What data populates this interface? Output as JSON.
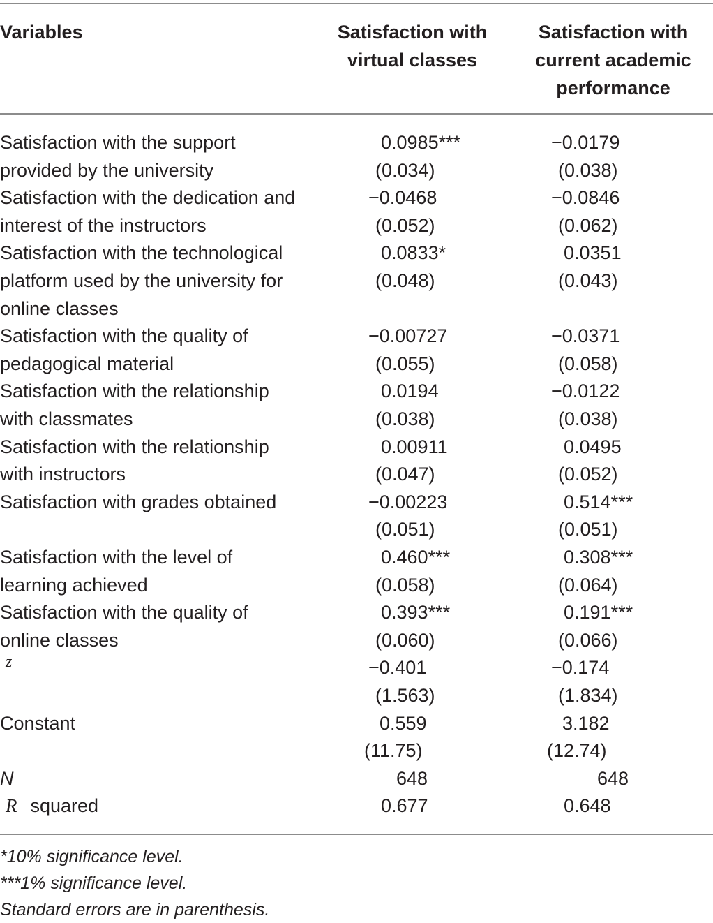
{
  "header": {
    "variables": "Variables",
    "col1": [
      "Satisfaction with",
      "virtual classes"
    ],
    "col2": [
      "Satisfaction with",
      "current academic",
      "performance"
    ]
  },
  "rows": [
    {
      "label": [
        "Satisfaction with the support",
        "provided by the university"
      ],
      "c1": [
        "0.0985***",
        "(0.034)"
      ],
      "c2": [
        "−0.0179",
        "(0.038)"
      ]
    },
    {
      "label": [
        "Satisfaction with the dedication and",
        "interest of the instructors"
      ],
      "c1": [
        "−0.0468",
        "(0.052)"
      ],
      "c2": [
        "−0.0846",
        "(0.062)"
      ]
    },
    {
      "label": [
        "Satisfaction with the technological",
        "platform used by the university for",
        "online classes"
      ],
      "c1": [
        "0.0833*",
        "(0.048)"
      ],
      "c2": [
        "0.0351",
        "(0.043)"
      ]
    },
    {
      "label": [
        "Satisfaction with the quality of",
        "pedagogical material"
      ],
      "c1": [
        "−0.00727",
        "(0.055)"
      ],
      "c2": [
        "−0.0371",
        "(0.058)"
      ]
    },
    {
      "label": [
        "Satisfaction with the relationship",
        "with classmates"
      ],
      "c1": [
        "0.0194",
        "(0.038)"
      ],
      "c2": [
        "−0.0122",
        "(0.038)"
      ]
    },
    {
      "label": [
        "Satisfaction with the relationship",
        "with instructors"
      ],
      "c1": [
        "0.00911",
        "(0.047)"
      ],
      "c2": [
        "0.0495",
        "(0.052)"
      ]
    },
    {
      "label": [
        "Satisfaction with grades obtained"
      ],
      "c1": [
        "−0.00223",
        "(0.051)"
      ],
      "c2": [
        "0.514***",
        "(0.051)"
      ]
    },
    {
      "label": [
        "Satisfaction with the level of",
        "learning achieved"
      ],
      "c1": [
        "0.460***",
        "(0.058)"
      ],
      "c2": [
        "0.308***",
        "(0.064)"
      ]
    },
    {
      "label": [
        "Satisfaction with the quality of",
        "online classes"
      ],
      "c1": [
        "0.393***",
        "(0.060)"
      ],
      "c2": [
        "0.191***",
        "(0.066)"
      ]
    },
    {
      "label": [
        "z"
      ],
      "c1": [
        "−0.401",
        "(1.563)"
      ],
      "c2": [
        "−0.174",
        "(1.834)"
      ]
    },
    {
      "label": [
        "Constant"
      ],
      "c1": [
        "0.559",
        "(11.75)"
      ],
      "c2": [
        "3.182",
        "(12.74)"
      ]
    },
    {
      "label": [
        "N"
      ],
      "c1": [
        "648"
      ],
      "c2": [
        "648"
      ]
    },
    {
      "label": [
        "R",
        "squared"
      ],
      "c1": [
        "0.677"
      ],
      "c2": [
        "0.648"
      ]
    }
  ],
  "notes": [
    "*10% significance level.",
    "***1% significance level.",
    "Standard errors are in parenthesis."
  ]
}
